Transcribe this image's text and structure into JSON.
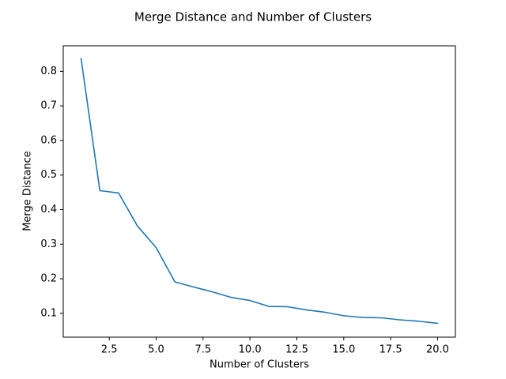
{
  "chart_data": {
    "type": "line",
    "title": "Merge Distance and Number of Clusters",
    "xlabel": "Number of Clusters",
    "ylabel": "Merge Distance",
    "xlim": [
      0.05,
      20.95
    ],
    "ylim": [
      0.031,
      0.874
    ],
    "x_ticks": [
      2.5,
      5.0,
      7.5,
      10.0,
      12.5,
      15.0,
      17.5,
      20.0
    ],
    "x_tick_labels": [
      "2.5",
      "5.0",
      "7.5",
      "10.0",
      "12.5",
      "15.0",
      "17.5",
      "20.0"
    ],
    "y_ticks": [
      0.1,
      0.2,
      0.3,
      0.4,
      0.5,
      0.6,
      0.7,
      0.8
    ],
    "y_tick_labels": [
      "0.1",
      "0.2",
      "0.3",
      "0.4",
      "0.5",
      "0.6",
      "0.7",
      "0.8"
    ],
    "grid": false,
    "series": [
      {
        "color": "#1f77b4",
        "x": [
          1,
          2,
          3,
          4,
          5,
          6,
          7,
          8,
          9,
          10,
          11,
          12,
          13,
          14,
          15,
          16,
          17,
          18,
          19,
          20
        ],
        "values": [
          0.837,
          0.455,
          0.448,
          0.353,
          0.29,
          0.191,
          0.176,
          0.162,
          0.146,
          0.137,
          0.12,
          0.119,
          0.11,
          0.103,
          0.093,
          0.088,
          0.087,
          0.081,
          0.077,
          0.071
        ]
      }
    ]
  }
}
